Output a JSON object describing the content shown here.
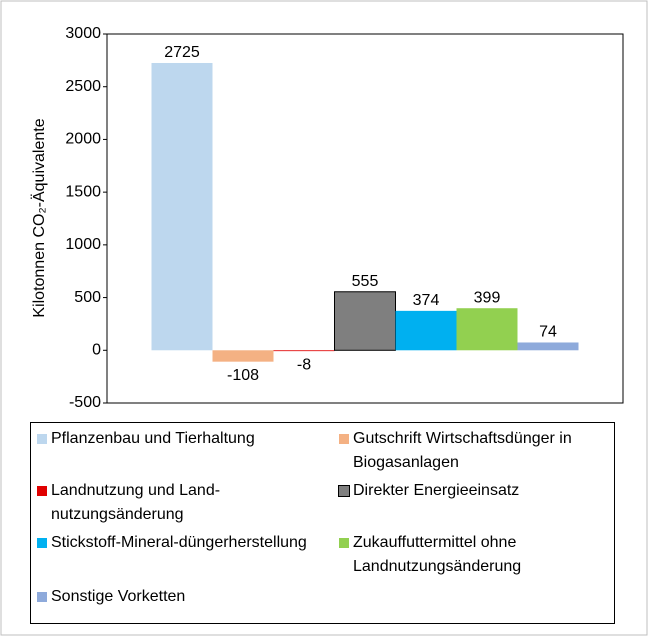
{
  "chart_data": {
    "type": "bar",
    "y_label": "Kilotonnen CO₂-Äquivalente",
    "ylim": [
      -500,
      3000
    ],
    "yticks": [
      -500,
      0,
      500,
      1000,
      1500,
      2000,
      2500,
      3000
    ],
    "grid": false,
    "series": [
      {
        "name": "Pflanzenbau und Tierhaltung",
        "color": "#bdd7ee",
        "values": [
          2725
        ]
      },
      {
        "name": "Gutschrift Wirtschaftsdünger in Biogasanlagen",
        "color": "#f4b183",
        "values": [
          -108
        ]
      },
      {
        "name": "Landnutzung und Land-nutzungsänderung",
        "color": "#e00000",
        "values": [
          -8
        ]
      },
      {
        "name": "Direkter Energieeinsatz",
        "color": "#7f7f7f",
        "values": [
          555
        ]
      },
      {
        "name": "Stickstoff-Mineral-düngerherstellung",
        "color": "#00b0f0",
        "values": [
          374
        ]
      },
      {
        "name": "Zukauffuttermittel ohne Landnutzungsänderung",
        "color": "#92d050",
        "values": [
          399
        ]
      },
      {
        "name": "Sonstige Vorketten",
        "color": "#8eaadb",
        "values": [
          74
        ]
      }
    ]
  }
}
